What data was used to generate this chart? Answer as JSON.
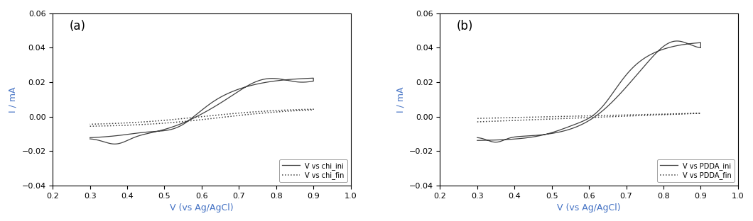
{
  "xlim": [
    0.2,
    1.0
  ],
  "ylim": [
    -0.04,
    0.06
  ],
  "xlabel": "V (vs Ag/AgCl)",
  "ylabel": "I / mA",
  "xticks": [
    0.2,
    0.3,
    0.4,
    0.5,
    0.6,
    0.7,
    0.8,
    0.9,
    1.0
  ],
  "yticks": [
    -0.04,
    -0.02,
    0.0,
    0.02,
    0.04,
    0.06
  ],
  "label_color": "#4472C4",
  "line_color": "#404040",
  "panel_a_label": "(a)",
  "panel_b_label": "(b)",
  "legend_a": [
    "V vs chi_ini",
    "V vs chi_fin"
  ],
  "legend_b": [
    "V vs PDDA_ini",
    "V vs PDDA_fin"
  ]
}
